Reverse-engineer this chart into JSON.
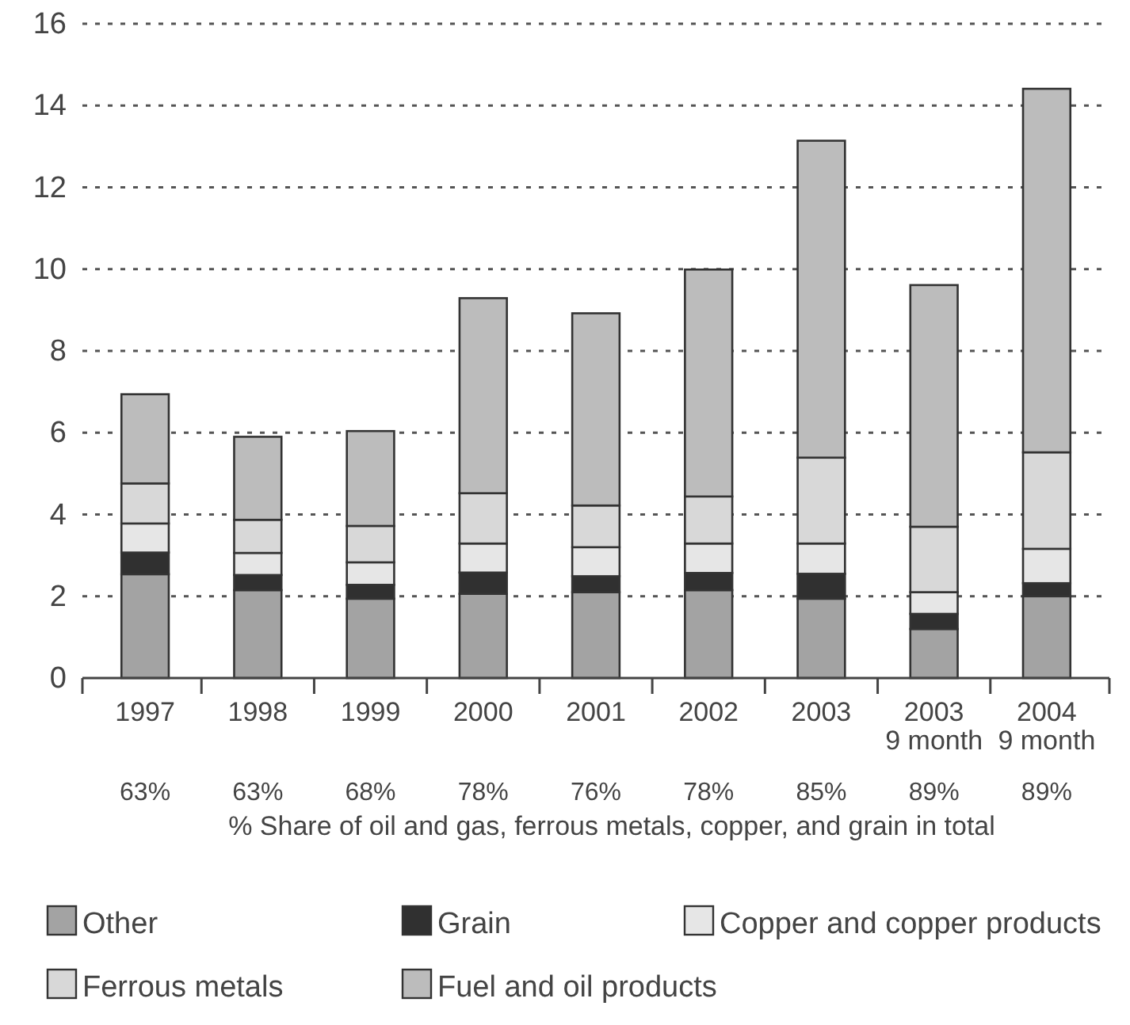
{
  "chart_data": {
    "type": "bar",
    "stacked": true,
    "categories": [
      "1997",
      "1998",
      "1999",
      "2000",
      "2001",
      "2002",
      "2003",
      "2003\n9 month",
      "2004\n9 month"
    ],
    "series": [
      {
        "name": "Other",
        "color": "#a3a3a3",
        "values": [
          2.54,
          2.15,
          1.94,
          2.06,
          2.1,
          2.15,
          1.94,
          1.2,
          2.0
        ]
      },
      {
        "name": "Grain",
        "color": "#303030",
        "values": [
          0.53,
          0.37,
          0.34,
          0.52,
          0.39,
          0.42,
          0.61,
          0.37,
          0.32
        ]
      },
      {
        "name": "Copper and copper products",
        "color": "#e6e6e6",
        "values": [
          0.71,
          0.54,
          0.55,
          0.71,
          0.71,
          0.72,
          0.74,
          0.53,
          0.84
        ]
      },
      {
        "name": "Ferrous metals",
        "color": "#d8d8d8",
        "values": [
          0.98,
          0.81,
          0.89,
          1.23,
          1.02,
          1.15,
          2.1,
          1.6,
          2.36
        ]
      },
      {
        "name": "Fuel and oil products",
        "color": "#bcbcbc",
        "values": [
          2.18,
          2.03,
          2.32,
          4.77,
          4.7,
          5.55,
          7.75,
          5.91,
          8.89
        ]
      }
    ],
    "ylim": [
      0,
      16
    ],
    "yticks": [
      0,
      2,
      4,
      6,
      8,
      10,
      12,
      14,
      16
    ],
    "grid": "y",
    "legend": "bottom",
    "annotations": [
      "63%",
      "63%",
      "68%",
      "78%",
      "76%",
      "78%",
      "85%",
      "89%",
      "89%",
      "% Share of oil and gas, ferrous metals, copper, and grain in total"
    ]
  }
}
